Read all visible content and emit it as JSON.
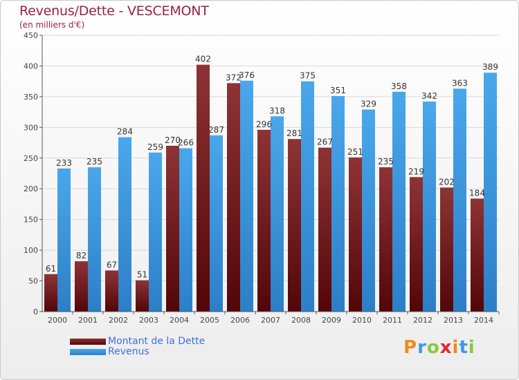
{
  "header": {
    "title": "Revenus/Dette - VESCEMONT",
    "subtitle": "(en milliers d'€)"
  },
  "colors": {
    "dette": "#7a1f22",
    "revenus": "#3b9be0",
    "title": "#9a1f47",
    "legend_text": "#3f6ee0"
  },
  "legend": {
    "items": [
      {
        "label": "Montant de la Dette",
        "color": "#6b1216"
      },
      {
        "label": "Revenus",
        "color": "#3b9be0"
      }
    ]
  },
  "logo": {
    "text": "Proxiti",
    "letter_colors": [
      "#f08a1c",
      "#3b9be0",
      "#8dc63f",
      "#e8262a",
      "#f08a1c",
      "#3b9be0",
      "#8dc63f"
    ]
  },
  "chart_data": {
    "type": "bar",
    "title": "Revenus/Dette - VESCEMONT",
    "ylabel": "(en milliers d'€)",
    "categories": [
      "2000",
      "2001",
      "2002",
      "2003",
      "2004",
      "2005",
      "2006",
      "2007",
      "2008",
      "2009",
      "2010",
      "2011",
      "2012",
      "2013",
      "2014"
    ],
    "series": [
      {
        "name": "Montant de la Dette",
        "values": [
          61,
          82,
          67,
          51,
          270,
          402,
          372,
          296,
          281,
          267,
          251,
          235,
          219,
          202,
          184
        ]
      },
      {
        "name": "Revenus",
        "values": [
          233,
          235,
          284,
          259,
          266,
          287,
          376,
          318,
          375,
          351,
          329,
          358,
          342,
          363,
          389
        ]
      }
    ],
    "ylim": [
      0,
      450
    ],
    "yticks": [
      0,
      50,
      100,
      150,
      200,
      250,
      300,
      350,
      400,
      450
    ],
    "grid": true,
    "legend_position": "bottom-left"
  }
}
